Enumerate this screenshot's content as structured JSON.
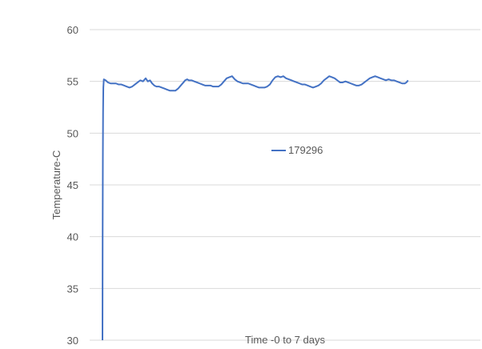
{
  "chart_data": {
    "type": "line",
    "title": "",
    "xlabel": "Time -0 to 7 days",
    "ylabel": "Temperature-C",
    "ylim": [
      30,
      60
    ],
    "xlim": [
      0,
      7
    ],
    "y_ticks": [
      30,
      35,
      40,
      45,
      50,
      55,
      60
    ],
    "grid": "horizontal",
    "legend_position": "center-right",
    "series": [
      {
        "name": "179296",
        "color": "#4472C4",
        "points": [
          [
            0.0,
            30.0
          ],
          [
            0.003,
            40.0
          ],
          [
            0.007,
            47.5
          ],
          [
            0.011,
            52.0
          ],
          [
            0.016,
            54.4
          ],
          [
            0.025,
            55.2
          ],
          [
            0.06,
            55.1
          ],
          [
            0.1,
            54.9
          ],
          [
            0.15,
            54.8
          ],
          [
            0.2,
            54.8
          ],
          [
            0.25,
            54.8
          ],
          [
            0.3,
            54.7
          ],
          [
            0.35,
            54.7
          ],
          [
            0.4,
            54.6
          ],
          [
            0.45,
            54.5
          ],
          [
            0.5,
            54.4
          ],
          [
            0.55,
            54.5
          ],
          [
            0.6,
            54.7
          ],
          [
            0.65,
            54.9
          ],
          [
            0.7,
            55.1
          ],
          [
            0.75,
            55.0
          ],
          [
            0.8,
            55.3
          ],
          [
            0.84,
            55.0
          ],
          [
            0.88,
            55.1
          ],
          [
            0.92,
            54.8
          ],
          [
            0.96,
            54.6
          ],
          [
            1.0,
            54.5
          ],
          [
            1.05,
            54.5
          ],
          [
            1.1,
            54.4
          ],
          [
            1.15,
            54.3
          ],
          [
            1.2,
            54.2
          ],
          [
            1.25,
            54.1
          ],
          [
            1.3,
            54.1
          ],
          [
            1.35,
            54.1
          ],
          [
            1.4,
            54.3
          ],
          [
            1.45,
            54.6
          ],
          [
            1.5,
            54.9
          ],
          [
            1.53,
            55.1
          ],
          [
            1.57,
            55.2
          ],
          [
            1.6,
            55.1
          ],
          [
            1.65,
            55.1
          ],
          [
            1.7,
            55.0
          ],
          [
            1.75,
            54.9
          ],
          [
            1.8,
            54.8
          ],
          [
            1.85,
            54.7
          ],
          [
            1.9,
            54.6
          ],
          [
            1.95,
            54.6
          ],
          [
            2.0,
            54.6
          ],
          [
            2.05,
            54.5
          ],
          [
            2.1,
            54.5
          ],
          [
            2.15,
            54.5
          ],
          [
            2.2,
            54.7
          ],
          [
            2.25,
            55.0
          ],
          [
            2.3,
            55.3
          ],
          [
            2.35,
            55.4
          ],
          [
            2.4,
            55.5
          ],
          [
            2.45,
            55.2
          ],
          [
            2.5,
            55.0
          ],
          [
            2.55,
            54.9
          ],
          [
            2.6,
            54.8
          ],
          [
            2.65,
            54.8
          ],
          [
            2.7,
            54.8
          ],
          [
            2.75,
            54.7
          ],
          [
            2.8,
            54.6
          ],
          [
            2.85,
            54.5
          ],
          [
            2.9,
            54.4
          ],
          [
            2.95,
            54.4
          ],
          [
            3.0,
            54.4
          ],
          [
            3.05,
            54.5
          ],
          [
            3.1,
            54.7
          ],
          [
            3.15,
            55.1
          ],
          [
            3.2,
            55.4
          ],
          [
            3.25,
            55.5
          ],
          [
            3.3,
            55.4
          ],
          [
            3.35,
            55.5
          ],
          [
            3.4,
            55.3
          ],
          [
            3.45,
            55.2
          ],
          [
            3.5,
            55.1
          ],
          [
            3.55,
            55.0
          ],
          [
            3.6,
            54.9
          ],
          [
            3.65,
            54.8
          ],
          [
            3.7,
            54.7
          ],
          [
            3.75,
            54.7
          ],
          [
            3.8,
            54.6
          ],
          [
            3.85,
            54.5
          ],
          [
            3.9,
            54.4
          ],
          [
            3.95,
            54.5
          ],
          [
            4.0,
            54.6
          ],
          [
            4.05,
            54.8
          ],
          [
            4.1,
            55.1
          ],
          [
            4.15,
            55.3
          ],
          [
            4.2,
            55.5
          ],
          [
            4.25,
            55.4
          ],
          [
            4.3,
            55.3
          ],
          [
            4.35,
            55.1
          ],
          [
            4.4,
            54.9
          ],
          [
            4.45,
            54.9
          ],
          [
            4.5,
            55.0
          ],
          [
            4.55,
            54.9
          ],
          [
            4.6,
            54.8
          ],
          [
            4.65,
            54.7
          ],
          [
            4.7,
            54.6
          ],
          [
            4.75,
            54.6
          ],
          [
            4.8,
            54.7
          ],
          [
            4.85,
            54.9
          ],
          [
            4.9,
            55.1
          ],
          [
            4.95,
            55.3
          ],
          [
            5.0,
            55.4
          ],
          [
            5.05,
            55.5
          ],
          [
            5.1,
            55.4
          ],
          [
            5.15,
            55.3
          ],
          [
            5.2,
            55.2
          ],
          [
            5.25,
            55.1
          ],
          [
            5.3,
            55.2
          ],
          [
            5.35,
            55.1
          ],
          [
            5.4,
            55.1
          ],
          [
            5.45,
            55.0
          ],
          [
            5.5,
            54.9
          ],
          [
            5.55,
            54.8
          ],
          [
            5.6,
            54.8
          ],
          [
            5.63,
            54.9
          ],
          [
            5.66,
            55.1
          ]
        ]
      }
    ]
  }
}
